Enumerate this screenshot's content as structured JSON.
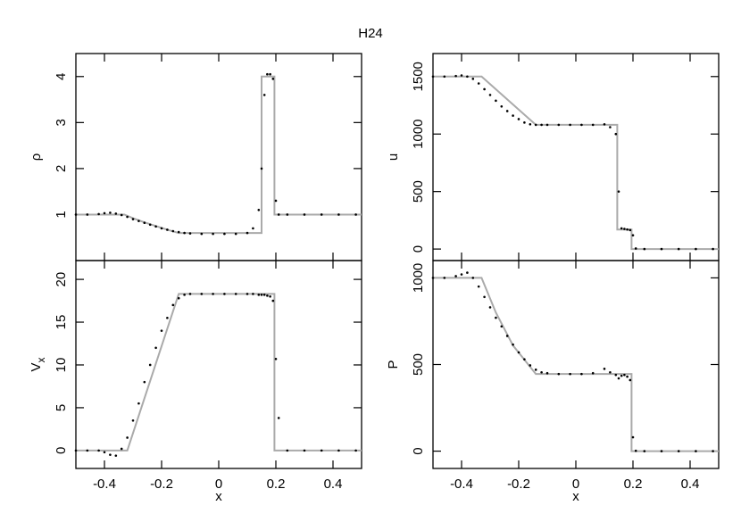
{
  "chart_data": [
    {
      "type": "line",
      "title": "H24",
      "ylabel": "ρ",
      "xlim": [
        -0.5,
        0.5
      ],
      "xticks": [
        -0.4,
        -0.2,
        0,
        0.2,
        0.4
      ],
      "xtick_labels": false,
      "ylim": [
        0,
        4.5
      ],
      "yticks": [
        1,
        2,
        3,
        4
      ],
      "series": [
        {
          "style": "line",
          "color": "#aaaaaa",
          "x": [
            -0.5,
            -0.33,
            -0.3,
            -0.26,
            -0.22,
            -0.18,
            -0.14,
            0.15,
            0.15,
            0.195,
            0.195,
            0.5
          ],
          "values": [
            1,
            1,
            0.92,
            0.83,
            0.75,
            0.67,
            0.6,
            0.6,
            4,
            4,
            1,
            1
          ]
        },
        {
          "style": "dots",
          "color": "#000000",
          "x": [
            -0.5,
            -0.46,
            -0.42,
            -0.4,
            -0.38,
            -0.36,
            -0.34,
            -0.32,
            -0.3,
            -0.28,
            -0.26,
            -0.24,
            -0.22,
            -0.2,
            -0.18,
            -0.16,
            -0.14,
            -0.12,
            -0.1,
            -0.06,
            -0.02,
            0.02,
            0.06,
            0.1,
            0.12,
            0.14,
            0.15,
            0.16,
            0.17,
            0.18,
            0.19,
            0.2,
            0.21,
            0.24,
            0.3,
            0.36,
            0.42,
            0.48
          ],
          "values": [
            1,
            1,
            1.01,
            1.03,
            1.04,
            1.02,
            0.99,
            0.95,
            0.9,
            0.86,
            0.82,
            0.78,
            0.74,
            0.7,
            0.67,
            0.64,
            0.62,
            0.6,
            0.59,
            0.58,
            0.58,
            0.58,
            0.58,
            0.6,
            0.7,
            1.1,
            2.0,
            3.6,
            4.05,
            4.05,
            3.95,
            1.3,
            1.0,
            1,
            1,
            1,
            1,
            1
          ]
        }
      ]
    },
    {
      "type": "line",
      "ylabel": "u",
      "xlim": [
        -0.5,
        0.5
      ],
      "xticks": [
        -0.4,
        -0.2,
        0,
        0.2,
        0.4
      ],
      "xtick_labels": false,
      "ylim": [
        -100,
        1700
      ],
      "yticks": [
        0,
        500,
        1000,
        1500
      ],
      "series": [
        {
          "style": "line",
          "color": "#aaaaaa",
          "x": [
            -0.5,
            -0.33,
            -0.14,
            0.145,
            0.145,
            0.195,
            0.195,
            0.5
          ],
          "values": [
            1500,
            1500,
            1080,
            1080,
            170,
            170,
            0,
            0
          ]
        },
        {
          "style": "dots",
          "color": "#000000",
          "x": [
            -0.5,
            -0.46,
            -0.42,
            -0.4,
            -0.38,
            -0.36,
            -0.34,
            -0.32,
            -0.3,
            -0.28,
            -0.26,
            -0.24,
            -0.22,
            -0.2,
            -0.18,
            -0.16,
            -0.14,
            -0.12,
            -0.1,
            -0.06,
            -0.02,
            0.02,
            0.06,
            0.1,
            0.12,
            0.14,
            0.15,
            0.16,
            0.17,
            0.18,
            0.19,
            0.2,
            0.21,
            0.24,
            0.3,
            0.36,
            0.42,
            0.48
          ],
          "values": [
            1500,
            1500,
            1505,
            1510,
            1500,
            1480,
            1440,
            1390,
            1340,
            1290,
            1240,
            1200,
            1160,
            1130,
            1100,
            1085,
            1080,
            1080,
            1080,
            1080,
            1080,
            1080,
            1080,
            1085,
            1060,
            1000,
            500,
            180,
            175,
            170,
            165,
            120,
            5,
            0,
            0,
            0,
            0,
            0
          ]
        }
      ]
    },
    {
      "type": "line",
      "ylabel": "V",
      "ylabel_sub": "x",
      "xlabel": "x",
      "xlim": [
        -0.5,
        0.5
      ],
      "xticks": [
        -0.4,
        -0.2,
        0,
        0.2,
        0.4
      ],
      "xtick_labels": true,
      "ylim": [
        -2.1,
        22.2
      ],
      "yticks": [
        0,
        5,
        10,
        15,
        20
      ],
      "series": [
        {
          "style": "line",
          "color": "#aaaaaa",
          "x": [
            -0.5,
            -0.32,
            -0.14,
            0.195,
            0.195,
            0.5
          ],
          "values": [
            0,
            0,
            18.3,
            18.3,
            0,
            0
          ]
        },
        {
          "style": "dots",
          "color": "#000000",
          "x": [
            -0.5,
            -0.46,
            -0.42,
            -0.4,
            -0.38,
            -0.36,
            -0.34,
            -0.32,
            -0.3,
            -0.28,
            -0.26,
            -0.24,
            -0.22,
            -0.2,
            -0.18,
            -0.16,
            -0.14,
            -0.12,
            -0.1,
            -0.06,
            -0.02,
            0.02,
            0.06,
            0.1,
            0.12,
            0.14,
            0.15,
            0.16,
            0.17,
            0.18,
            0.19,
            0.2,
            0.21,
            0.24,
            0.3,
            0.36,
            0.42,
            0.48
          ],
          "values": [
            0,
            0,
            0,
            -0.2,
            -0.5,
            -0.6,
            0.2,
            1.5,
            3.5,
            5.5,
            8,
            10,
            12,
            14,
            15.5,
            17,
            17.8,
            18.2,
            18.3,
            18.3,
            18.3,
            18.3,
            18.3,
            18.3,
            18.3,
            18.2,
            18.2,
            18.2,
            18.1,
            18.0,
            17.5,
            10.7,
            3.8,
            0,
            0,
            0,
            0,
            0
          ]
        }
      ]
    },
    {
      "type": "line",
      "ylabel": "P",
      "xlabel": "x",
      "xlim": [
        -0.5,
        0.5
      ],
      "xticks": [
        -0.4,
        -0.2,
        0,
        0.2,
        0.4
      ],
      "xtick_labels": true,
      "ylim": [
        -100,
        1100
      ],
      "yticks": [
        0,
        500,
        1000
      ],
      "series": [
        {
          "style": "line",
          "color": "#aaaaaa",
          "x": [
            -0.5,
            -0.33,
            -0.28,
            -0.22,
            -0.14,
            0.195,
            0.195,
            0.5
          ],
          "values": [
            1000,
            1000,
            800,
            610,
            445,
            445,
            0,
            0
          ]
        },
        {
          "style": "dots",
          "color": "#000000",
          "x": [
            -0.5,
            -0.46,
            -0.42,
            -0.4,
            -0.38,
            -0.36,
            -0.34,
            -0.32,
            -0.3,
            -0.28,
            -0.26,
            -0.24,
            -0.22,
            -0.2,
            -0.18,
            -0.16,
            -0.14,
            -0.12,
            -0.1,
            -0.06,
            -0.02,
            0.02,
            0.06,
            0.1,
            0.12,
            0.14,
            0.15,
            0.16,
            0.17,
            0.18,
            0.19,
            0.2,
            0.21,
            0.24,
            0.3,
            0.36,
            0.42,
            0.48
          ],
          "values": [
            1000,
            1000,
            1010,
            1020,
            1030,
            1000,
            950,
            890,
            830,
            770,
            720,
            665,
            615,
            570,
            530,
            495,
            470,
            455,
            450,
            445,
            445,
            445,
            450,
            475,
            455,
            440,
            420,
            435,
            440,
            430,
            410,
            80,
            2,
            0,
            0,
            0,
            0,
            0
          ]
        }
      ]
    }
  ]
}
